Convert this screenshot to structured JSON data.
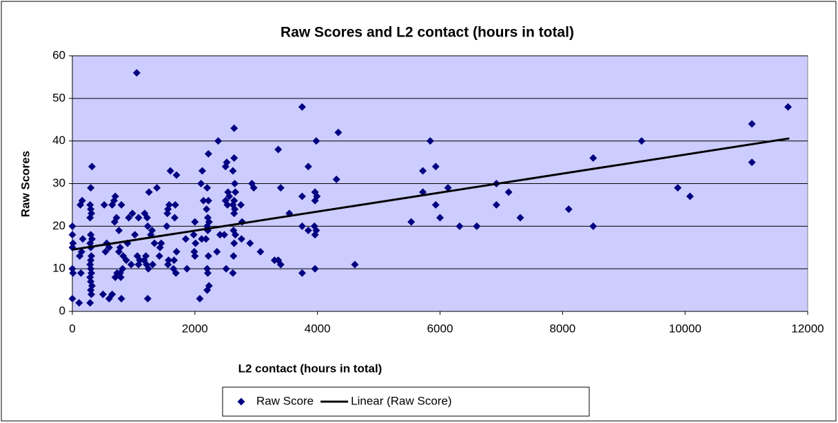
{
  "chart_data": {
    "type": "scatter",
    "title": "Raw Scores and L2 contact (hours in total)",
    "x_label": "L2 contact (hours in total)",
    "y_label": "Raw Scores",
    "xlim": [
      0,
      12000
    ],
    "ylim": [
      0,
      60
    ],
    "xticks": [
      0,
      2000,
      4000,
      6000,
      8000,
      10000,
      12000
    ],
    "yticks": [
      0,
      10,
      20,
      30,
      40,
      50,
      60
    ],
    "grid": true,
    "plot_background": "#ccccff",
    "series": [
      {
        "name": "Raw Score",
        "type": "scatter",
        "color": "#000080",
        "x": [
          0,
          0,
          10,
          0,
          0,
          10,
          0,
          160,
          130,
          170,
          150,
          120,
          140,
          110,
          320,
          300,
          290,
          300,
          310,
          290,
          300,
          320,
          290,
          300,
          310,
          300,
          290,
          300,
          310,
          290,
          300,
          320,
          300,
          310,
          290,
          520,
          560,
          600,
          540,
          500,
          700,
          680,
          650,
          720,
          690,
          760,
          730,
          700,
          650,
          600,
          800,
          780,
          760,
          830,
          820,
          780,
          790,
          800,
          980,
          920,
          900,
          880,
          960,
          1050,
          1080,
          1020,
          1060,
          1100,
          1080,
          1180,
          1220,
          1230,
          1200,
          1170,
          1210,
          1240,
          1230,
          1250,
          1300,
          1280,
          1380,
          1340,
          1310,
          1450,
          1430,
          1420,
          1600,
          1580,
          1560,
          1550,
          1540,
          1570,
          1560,
          1700,
          1680,
          1670,
          1700,
          1660,
          1650,
          1690,
          1850,
          1870,
          2000,
          1980,
          2010,
          1990,
          2000,
          2120,
          2100,
          2140,
          2110,
          2080,
          2220,
          2200,
          2220,
          2190,
          2210,
          2230,
          2200,
          2210,
          2180,
          2220,
          2200,
          2210,
          2230,
          2200,
          2380,
          2410,
          2360,
          2520,
          2500,
          2540,
          2560,
          2500,
          2530,
          2480,
          2510,
          2640,
          2640,
          2620,
          2650,
          2660,
          2640,
          2620,
          2650,
          2640,
          2630,
          2660,
          2640,
          2630,
          2620,
          2750,
          2770,
          2760,
          2930,
          2960,
          2900,
          3070,
          3300,
          3360,
          3360,
          3400,
          3400,
          3540,
          3750,
          3750,
          3750,
          3750,
          3850,
          3850,
          3980,
          3960,
          3990,
          3960,
          3950,
          3980,
          3960,
          3960,
          4310,
          4340,
          4610,
          5530,
          5720,
          5720,
          5840,
          5930,
          5930,
          6000,
          6130,
          6320,
          6600,
          6920,
          6920,
          7120,
          7310,
          8100,
          8500,
          8500,
          9290,
          9880,
          10080,
          11090,
          11090,
          11680
        ],
        "values": [
          20,
          18,
          16,
          15,
          10,
          9,
          3,
          26,
          25,
          17,
          14,
          13,
          9,
          2,
          34,
          29,
          25,
          24,
          23,
          22,
          18,
          17,
          16,
          15,
          13,
          12,
          11,
          10,
          9,
          8,
          7,
          6,
          5,
          4,
          2,
          25,
          16,
          15,
          14,
          4,
          27,
          26,
          25,
          22,
          21,
          19,
          9,
          8,
          4,
          3,
          25,
          15,
          14,
          13,
          10,
          9,
          8,
          3,
          23,
          22,
          16,
          12,
          11,
          56,
          22,
          18,
          13,
          12,
          11,
          23,
          22,
          20,
          13,
          12,
          11,
          10,
          3,
          28,
          19,
          18,
          29,
          16,
          11,
          16,
          15,
          13,
          33,
          25,
          24,
          23,
          20,
          12,
          11,
          32,
          25,
          22,
          14,
          12,
          10,
          9,
          17,
          10,
          21,
          18,
          16,
          14,
          13,
          33,
          30,
          26,
          17,
          3,
          37,
          29,
          26,
          24,
          22,
          21,
          20,
          19,
          17,
          13,
          10,
          9,
          6,
          5,
          40,
          18,
          14,
          35,
          34,
          28,
          27,
          26,
          25,
          18,
          10,
          43,
          36,
          33,
          30,
          28,
          26,
          25,
          24,
          23,
          19,
          18,
          16,
          13,
          9,
          25,
          21,
          17,
          30,
          29,
          16,
          14,
          12,
          38,
          12,
          29,
          11,
          23,
          48,
          27,
          20,
          9,
          34,
          19,
          40,
          28,
          27,
          26,
          20,
          19,
          18,
          10,
          31,
          42,
          11,
          21,
          33,
          28,
          40,
          34,
          25,
          22,
          29,
          20,
          20,
          30,
          25,
          28,
          22,
          24,
          36,
          20,
          40,
          29,
          27,
          44,
          35,
          48
        ]
      },
      {
        "name": "Linear (Raw Score)",
        "type": "line",
        "color": "#000000",
        "x": [
          0,
          11700
        ],
        "values": [
          14.5,
          40.6
        ]
      }
    ]
  }
}
